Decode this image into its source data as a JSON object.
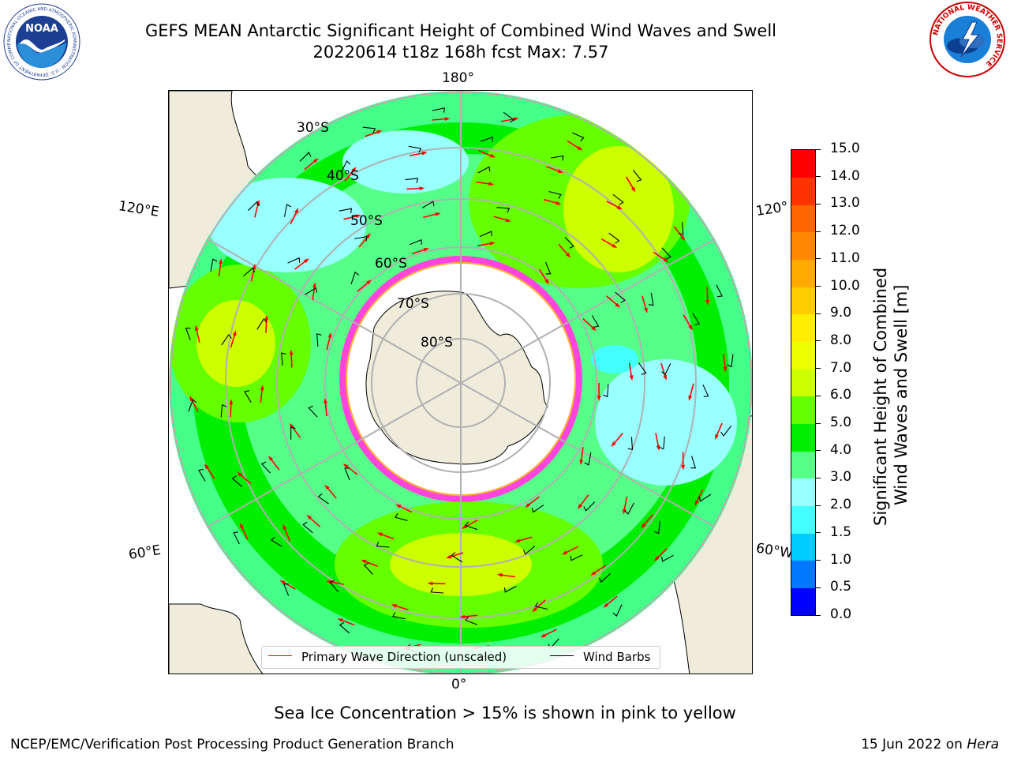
{
  "title": {
    "line1": "GEFS MEAN Antarctic Significant Height of Combined Wind Waves and Swell",
    "line2": "20220614 t18z 168h fcst   Max: 7.57"
  },
  "map": {
    "projection": "south-polar-stereographic",
    "longitude_labels": {
      "top": "180°",
      "left_upper": "120°E",
      "left_lower": "60°E",
      "right_upper": "120°",
      "right_lower": "60°W",
      "bottom": "0°"
    },
    "latitude_labels": [
      "30°S",
      "40°S",
      "50°S",
      "60°S",
      "70°S",
      "80°S"
    ],
    "colors": {
      "land": "#efecdc",
      "ice_edge": "#ff44dd",
      "ice_inner": "#ffaa33",
      "gridline": "#b0b0b0",
      "wave_arrow": "#ff0000",
      "wind_barb": "#000000"
    }
  },
  "legend": {
    "wave_direction": "Primary Wave Direction (unscaled)",
    "wind_barbs": "Wind Barbs"
  },
  "colorbar": {
    "title_line1": "Significant Height of Combined",
    "title_line2": "Wind Waves and Swell [m]",
    "ticks": [
      "0.0",
      "0.5",
      "1.0",
      "1.5",
      "2.0",
      "3.0",
      "4.0",
      "5.0",
      "6.0",
      "7.0",
      "8.0",
      "9.0",
      "10.0",
      "11.0",
      "12.0",
      "13.0",
      "14.0",
      "15.0"
    ],
    "colors": [
      "#0000ff",
      "#0077ff",
      "#00ccff",
      "#44ffff",
      "#99ffff",
      "#55ff88",
      "#00ee00",
      "#66ff00",
      "#ccff00",
      "#eeff00",
      "#ffee00",
      "#ffcc00",
      "#ffaa00",
      "#ff8800",
      "#ff6600",
      "#ff3300",
      "#ff0000"
    ]
  },
  "note": "Sea Ice Concentration > 15% is shown in pink to yellow",
  "footer": {
    "left": "NCEP/EMC/Verification Post Processing Product Generation Branch",
    "right_date": "15 Jun 2022 on ",
    "right_host": "Hera"
  },
  "logos": {
    "noaa_text": "NOAA",
    "noaa_ring_text": "NATIONAL OCEANIC AND ATMOSPHERIC ADMINISTRATION · U.S. DEPARTMENT OF COMMERCE",
    "nws_ring_text": "NATIONAL WEATHER SERVICE"
  }
}
